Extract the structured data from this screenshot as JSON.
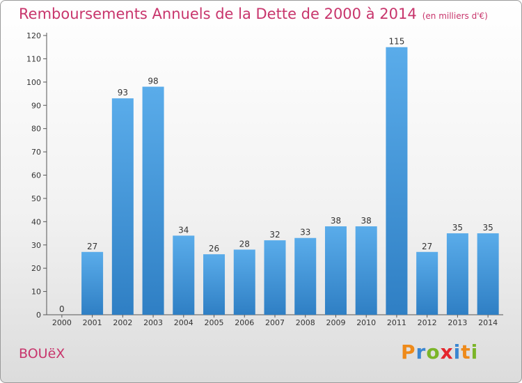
{
  "chart_data": {
    "type": "bar",
    "title": "Remboursements Annuels de la Dette de 2000 à 2014",
    "unit_label": "(en milliers d'€)",
    "categories": [
      "2000",
      "2001",
      "2002",
      "2003",
      "2004",
      "2005",
      "2006",
      "2007",
      "2008",
      "2009",
      "2010",
      "2011",
      "2012",
      "2013",
      "2014"
    ],
    "values": [
      0,
      27,
      93,
      98,
      34,
      26,
      28,
      32,
      33,
      38,
      38,
      115,
      27,
      35,
      35
    ],
    "yticks": [
      "0",
      "10",
      "20",
      "30",
      "40",
      "50",
      "60",
      "70",
      "80",
      "90",
      "100",
      "110",
      "120"
    ],
    "ylim": [
      0,
      120
    ],
    "grid": false,
    "legend": "none",
    "bar_color_top": "#5aacea",
    "bar_color_bottom": "#2f7fc4"
  },
  "footer": {
    "place": "BOUëX",
    "brand_letters": [
      "P",
      "r",
      "o",
      "x",
      "i",
      "t",
      "i"
    ],
    "brand_colors": [
      "#ee8a1a",
      "#3a86d1",
      "#7bb528",
      "#e5262d",
      "#3a86d1",
      "#ee8a1a",
      "#7bb528"
    ]
  }
}
